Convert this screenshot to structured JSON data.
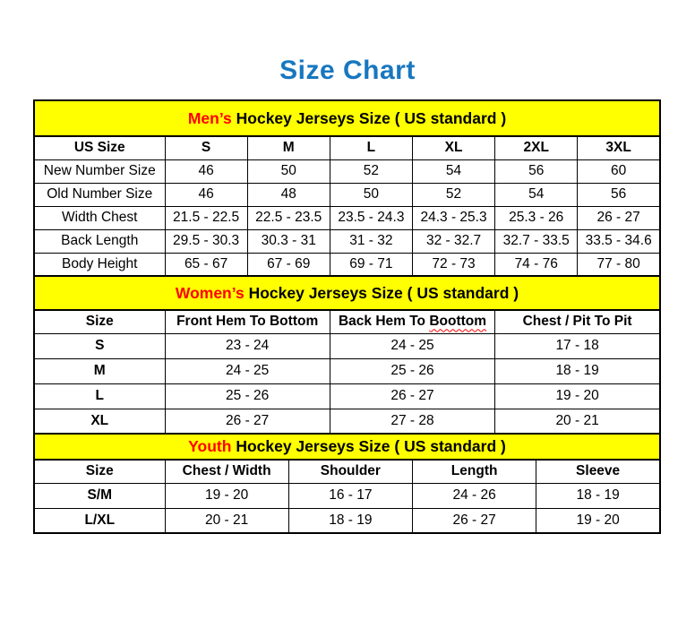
{
  "page": {
    "title": "Size Chart"
  },
  "colors": {
    "title_blue": "#1777bf",
    "band_yellow": "#ffff00",
    "accent_red": "#ff0000",
    "border_black": "#000000"
  },
  "chart_data": [
    {
      "type": "table",
      "title": "Men’s Hockey Jerseys Size ( US standard )",
      "title_highlight": "Men’s",
      "title_rest": "Hockey Jerseys Size ( US standard )",
      "columns": [
        "US Size",
        "S",
        "M",
        "L",
        "XL",
        "2XL",
        "3XL"
      ],
      "rows": [
        [
          "New Number Size",
          "46",
          "50",
          "52",
          "54",
          "56",
          "60"
        ],
        [
          "Old Number Size",
          "46",
          "48",
          "50",
          "52",
          "54",
          "56"
        ],
        [
          "Width Chest",
          "21.5 - 22.5",
          "22.5 - 23.5",
          "23.5 - 24.3",
          "24.3 - 25.3",
          "25.3 - 26",
          "26 - 27"
        ],
        [
          "Back Length",
          "29.5 - 30.3",
          "30.3 - 31",
          "31 - 32",
          "32 - 32.7",
          "32.7 - 33.5",
          "33.5 - 34.6"
        ],
        [
          "Body Height",
          "65 - 67",
          "67 - 69",
          "69 - 71",
          "72 - 73",
          "74 - 76",
          "77 - 80"
        ]
      ]
    },
    {
      "type": "table",
      "title": "Women’s Hockey Jerseys Size ( US standard )",
      "title_highlight": "Women’s",
      "title_rest": "Hockey Jerseys Size ( US standard )",
      "columns": [
        "Size",
        "Front Hem To Bottom",
        "Back Hem To Boottom",
        "Chest / Pit To Pit"
      ],
      "back_hem_prefix": "Back Hem To",
      "misspelled_word": "Boottom",
      "rows": [
        [
          "S",
          "23 - 24",
          "24 - 25",
          "17 - 18"
        ],
        [
          "M",
          "24 - 25",
          "25 - 26",
          "18 - 19"
        ],
        [
          "L",
          "25 - 26",
          "26 - 27",
          "19 - 20"
        ],
        [
          "XL",
          "26 - 27",
          "27 - 28",
          "20 - 21"
        ]
      ]
    },
    {
      "type": "table",
      "title": "Youth Hockey Jerseys Size ( US standard )",
      "title_highlight": "Youth",
      "title_rest": "Hockey Jerseys Size ( US standard )",
      "columns": [
        "Size",
        "Chest / Width",
        "Shoulder",
        "Length",
        "Sleeve"
      ],
      "rows": [
        [
          "S/M",
          "19 - 20",
          "16 - 17",
          "24 - 26",
          "18 - 19"
        ],
        [
          "L/XL",
          "20 - 21",
          "18 - 19",
          "26 - 27",
          "19 - 20"
        ]
      ]
    }
  ]
}
